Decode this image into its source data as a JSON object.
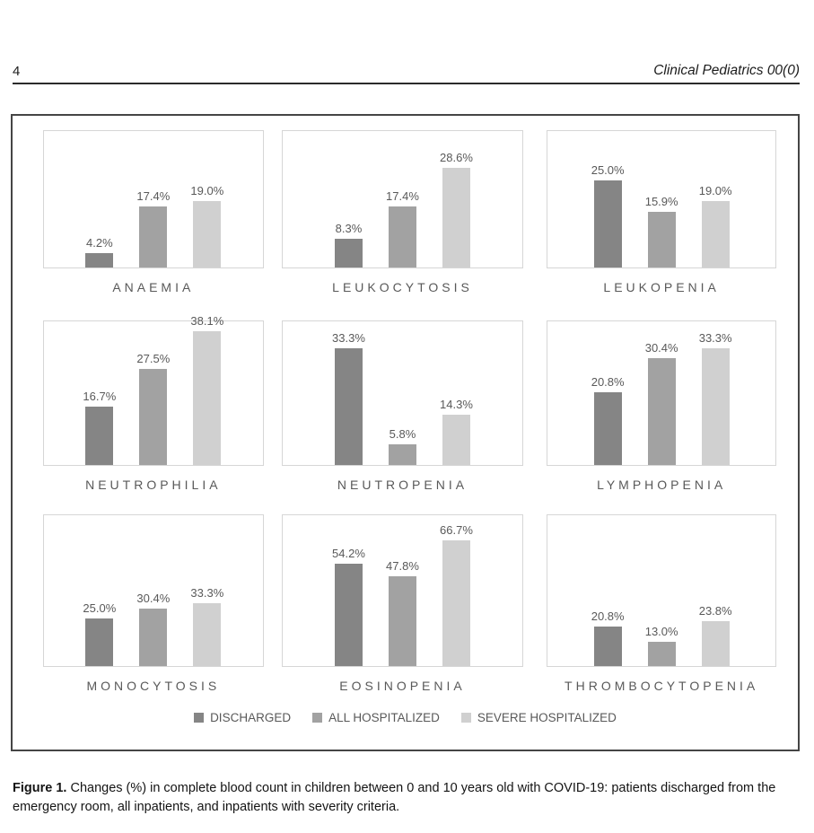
{
  "page": {
    "number": "4",
    "running_head": "Clinical Pediatrics 00(0)"
  },
  "colors": {
    "discharged": "#858585",
    "all_hospitalized": "#a2a2a2",
    "severe_hospitalized": "#d0d0d0",
    "plot_border": "#d6d6d6",
    "label_text": "#595959"
  },
  "legend": {
    "items": [
      {
        "name": "discharged",
        "label": "DISCHARGED",
        "color": "#858585"
      },
      {
        "name": "all-hospitalized",
        "label": "ALL HOSPITALIZED",
        "color": "#a2a2a2"
      },
      {
        "name": "severe-hospitalized",
        "label": "SEVERE HOSPITALIZED",
        "color": "#d0d0d0"
      }
    ]
  },
  "figure_caption": {
    "label": "Figure 1.",
    "text": "Changes (%) in complete blood count in children between 0 and 10 years old with COVID-19: patients discharged from the emergency room, all inpatients, and inpatients with severity criteria."
  },
  "chart_data": [
    {
      "type": "bar",
      "title": "ANAEMIA",
      "series": [
        "DISCHARGED",
        "ALL HOSPITALIZED",
        "SEVERE HOSPITALIZED"
      ],
      "values": [
        4.2,
        17.4,
        19.0
      ],
      "labels": [
        "4.2%",
        "17.4%",
        "19.0%"
      ],
      "ylim": [
        0,
        39
      ],
      "grid": false,
      "legend_position": "bottom-shared"
    },
    {
      "type": "bar",
      "title": "LEUKOCYTOSIS",
      "series": [
        "DISCHARGED",
        "ALL HOSPITALIZED",
        "SEVERE HOSPITALIZED"
      ],
      "values": [
        8.3,
        17.4,
        28.6
      ],
      "labels": [
        "8.3%",
        "17.4%",
        "28.6%"
      ],
      "ylim": [
        0,
        39
      ],
      "grid": false,
      "legend_position": "bottom-shared"
    },
    {
      "type": "bar",
      "title": "LEUKOPENIA",
      "series": [
        "DISCHARGED",
        "ALL HOSPITALIZED",
        "SEVERE HOSPITALIZED"
      ],
      "values": [
        25.0,
        15.9,
        19.0
      ],
      "labels": [
        "25.0%",
        "15.9%",
        "19.0%"
      ],
      "ylim": [
        0,
        39
      ],
      "grid": false,
      "legend_position": "bottom-shared"
    },
    {
      "type": "bar",
      "title": "NEUTROPHILIA",
      "series": [
        "DISCHARGED",
        "ALL HOSPITALIZED",
        "SEVERE HOSPITALIZED"
      ],
      "values": [
        16.7,
        27.5,
        38.1
      ],
      "labels": [
        "16.7%",
        "27.5%",
        "38.1%"
      ],
      "ylim": [
        0,
        41
      ],
      "grid": false,
      "legend_position": "bottom-shared"
    },
    {
      "type": "bar",
      "title": "NEUTROPENIA",
      "series": [
        "DISCHARGED",
        "ALL HOSPITALIZED",
        "SEVERE HOSPITALIZED"
      ],
      "values": [
        33.3,
        5.8,
        14.3
      ],
      "labels": [
        "33.3%",
        "5.8%",
        "14.3%"
      ],
      "ylim": [
        0,
        41
      ],
      "grid": false,
      "legend_position": "bottom-shared"
    },
    {
      "type": "bar",
      "title": "LYMPHOPENIA",
      "series": [
        "DISCHARGED",
        "ALL HOSPITALIZED",
        "SEVERE HOSPITALIZED"
      ],
      "values": [
        20.8,
        30.4,
        33.3
      ],
      "labels": [
        "20.8%",
        "30.4%",
        "33.3%"
      ],
      "ylim": [
        0,
        41
      ],
      "grid": false,
      "legend_position": "bottom-shared"
    },
    {
      "type": "bar",
      "title": "MONOCYTOSIS",
      "series": [
        "DISCHARGED",
        "ALL HOSPITALIZED",
        "SEVERE HOSPITALIZED"
      ],
      "values": [
        25.0,
        30.4,
        33.3
      ],
      "labels": [
        "25.0%",
        "30.4%",
        "33.3%"
      ],
      "ylim": [
        0,
        80
      ],
      "grid": false,
      "legend_position": "bottom-shared"
    },
    {
      "type": "bar",
      "title": "EOSINOPENIA",
      "series": [
        "DISCHARGED",
        "ALL HOSPITALIZED",
        "SEVERE HOSPITALIZED"
      ],
      "values": [
        54.2,
        47.8,
        66.7
      ],
      "labels": [
        "54.2%",
        "47.8%",
        "66.7%"
      ],
      "ylim": [
        0,
        80
      ],
      "grid": false,
      "legend_position": "bottom-shared"
    },
    {
      "type": "bar",
      "title": "THROMBOCYTOPENIA",
      "series": [
        "DISCHARGED",
        "ALL HOSPITALIZED",
        "SEVERE HOSPITALIZED"
      ],
      "values": [
        20.8,
        13.0,
        23.8
      ],
      "labels": [
        "20.8%",
        "13.0%",
        "23.8%"
      ],
      "ylim": [
        0,
        80
      ],
      "grid": false,
      "legend_position": "bottom-shared"
    }
  ]
}
